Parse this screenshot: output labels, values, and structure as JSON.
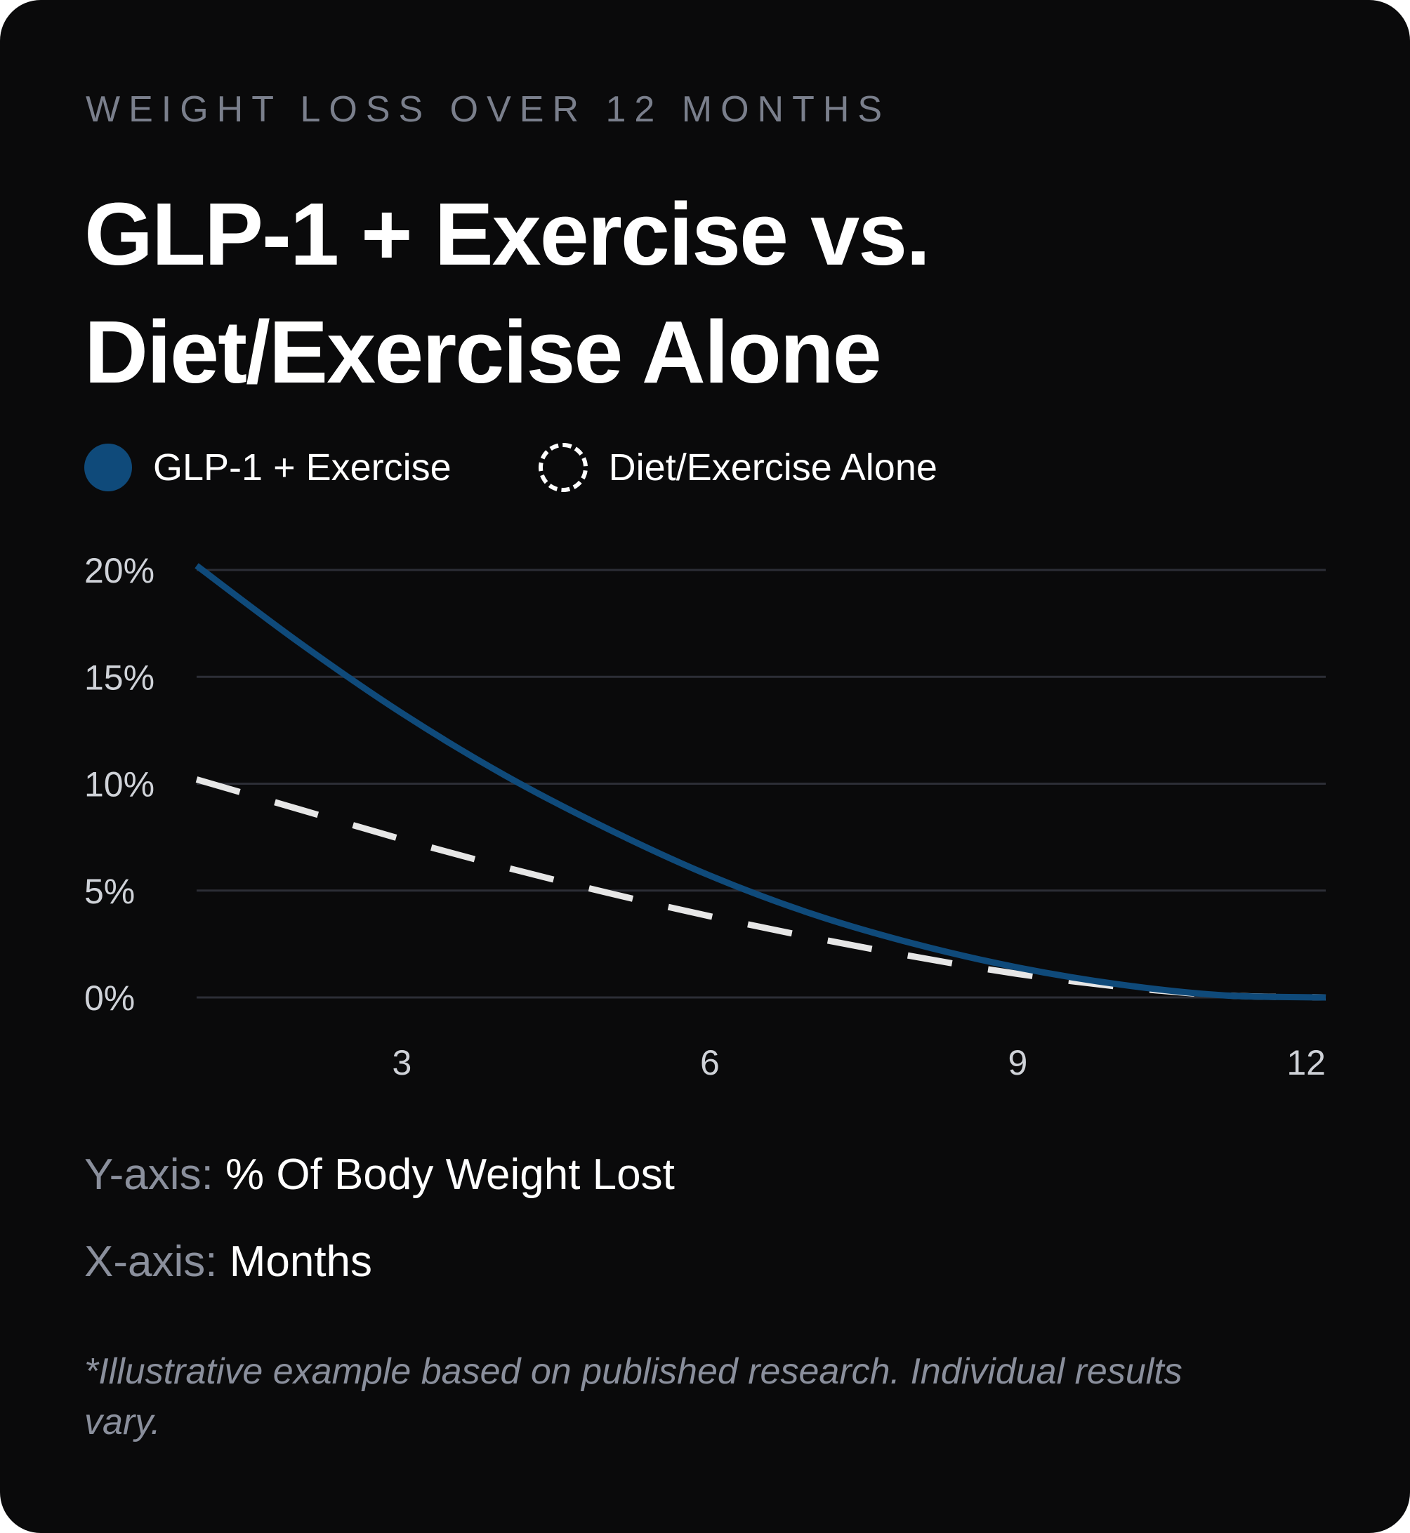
{
  "eyebrow": "WEIGHT LOSS OVER 12 MONTHS",
  "title": "GLP-1 + Exercise vs. Diet/Exercise Alone",
  "legend": [
    {
      "label": "GLP-1 + Exercise",
      "style": "solid",
      "color": "#0f4a7a"
    },
    {
      "label": "Diet/Exercise Alone",
      "style": "dashed",
      "color": "#e6e6e6"
    }
  ],
  "axes": {
    "y": {
      "key": "Y-axis:",
      "value": "% Of Body Weight Lost"
    },
    "x": {
      "key": "X-axis:",
      "value": "Months"
    }
  },
  "footnote": "*Illustrative example based on published research. Individual results vary.",
  "chart_data": {
    "type": "line",
    "title": "GLP-1 + Exercise vs. Diet/Exercise Alone",
    "xlabel": "Months",
    "ylabel": "% Of Body Weight Lost",
    "x_ticks": [
      "3",
      "6",
      "9",
      "12"
    ],
    "y_ticks": [
      "0%",
      "5%",
      "10%",
      "15%",
      "20%"
    ],
    "xlim": [
      1,
      12
    ],
    "ylim": [
      0,
      20
    ],
    "grid": true,
    "legend_position": "top-left",
    "series": [
      {
        "name": "GLP-1 + Exercise",
        "color": "#0f4a7a",
        "style": "solid",
        "x": [
          1,
          2,
          3,
          4,
          5,
          6,
          7,
          8,
          9,
          10,
          11,
          12
        ],
        "y": [
          20.2,
          16.6,
          13.3,
          10.4,
          7.9,
          5.7,
          3.9,
          2.5,
          1.4,
          0.6,
          0.1,
          0
        ]
      },
      {
        "name": "Diet/Exercise Alone",
        "color": "#e6e6e6",
        "style": "dashed",
        "x": [
          1,
          2,
          3,
          4,
          5,
          6,
          7,
          8,
          9,
          10,
          11,
          12
        ],
        "y": [
          10.2,
          8.8,
          7.4,
          6.1,
          4.9,
          3.8,
          2.8,
          1.9,
          1.1,
          0.5,
          0.1,
          0
        ]
      }
    ]
  }
}
